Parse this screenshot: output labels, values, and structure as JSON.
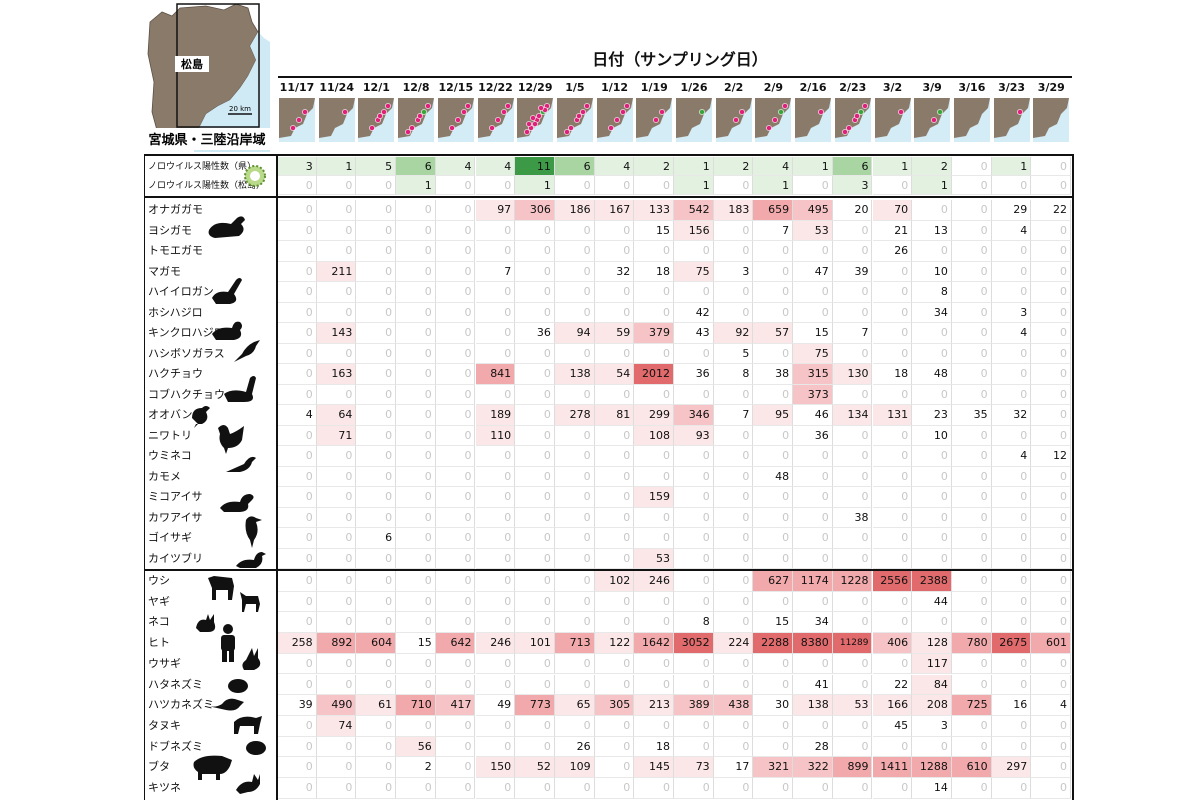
{
  "chart_data": {
    "type": "heatmap",
    "title": "日付（サンプリング日）",
    "map_labels": {
      "region": "宮城県・三陸沿岸域",
      "place": "松島",
      "scale": "20 km"
    },
    "dates": [
      "11/17",
      "11/24",
      "12/1",
      "12/8",
      "12/15",
      "12/22",
      "12/29",
      "1/5",
      "1/12",
      "1/19",
      "1/26",
      "2/2",
      "2/9",
      "2/16",
      "2/23",
      "3/2",
      "3/9",
      "3/16",
      "3/23",
      "3/29"
    ],
    "norovirus_rows": [
      {
        "label": "ノロウイルス陽性数（県）",
        "values": [
          3,
          1,
          5,
          6,
          4,
          4,
          11,
          6,
          4,
          2,
          1,
          2,
          4,
          1,
          6,
          1,
          2,
          0,
          1,
          0
        ]
      },
      {
        "label": "ノロウイルス陽性数（松島）",
        "values": [
          0,
          0,
          0,
          1,
          0,
          0,
          1,
          0,
          0,
          0,
          1,
          0,
          1,
          0,
          3,
          0,
          1,
          0,
          0,
          0
        ]
      }
    ],
    "bird_rows": [
      {
        "label": "オナガガモ",
        "values": [
          0,
          0,
          0,
          0,
          0,
          97,
          306,
          186,
          167,
          133,
          542,
          183,
          659,
          495,
          20,
          70,
          0,
          0,
          29,
          22
        ]
      },
      {
        "label": "ヨシガモ",
        "values": [
          0,
          0,
          0,
          0,
          0,
          0,
          0,
          0,
          0,
          15,
          156,
          0,
          7,
          53,
          0,
          21,
          13,
          0,
          4,
          0
        ]
      },
      {
        "label": "トモエガモ",
        "values": [
          0,
          0,
          0,
          0,
          0,
          0,
          0,
          0,
          0,
          0,
          0,
          0,
          0,
          0,
          0,
          26,
          0,
          0,
          0,
          0
        ]
      },
      {
        "label": "マガモ",
        "values": [
          0,
          211,
          0,
          0,
          0,
          7,
          0,
          0,
          32,
          18,
          75,
          3,
          0,
          47,
          39,
          0,
          10,
          0,
          0,
          0
        ]
      },
      {
        "label": "ハイイロガン",
        "values": [
          0,
          0,
          0,
          0,
          0,
          0,
          0,
          0,
          0,
          0,
          0,
          0,
          0,
          0,
          0,
          0,
          8,
          0,
          0,
          0
        ]
      },
      {
        "label": "ホシハジロ",
        "values": [
          0,
          0,
          0,
          0,
          0,
          0,
          0,
          0,
          0,
          0,
          42,
          0,
          0,
          0,
          0,
          0,
          34,
          0,
          3,
          0
        ]
      },
      {
        "label": "キンクロハジロ",
        "values": [
          0,
          143,
          0,
          0,
          0,
          0,
          36,
          94,
          59,
          379,
          43,
          92,
          57,
          15,
          7,
          0,
          0,
          0,
          4,
          0
        ]
      },
      {
        "label": "ハシボソガラス",
        "values": [
          0,
          0,
          0,
          0,
          0,
          0,
          0,
          0,
          0,
          0,
          0,
          5,
          0,
          75,
          0,
          0,
          0,
          0,
          0,
          0
        ]
      },
      {
        "label": "ハクチョウ",
        "values": [
          0,
          163,
          0,
          0,
          0,
          841,
          0,
          138,
          54,
          2012,
          36,
          8,
          38,
          315,
          130,
          18,
          48,
          0,
          0,
          0
        ]
      },
      {
        "label": "コブハクチョウ",
        "values": [
          0,
          0,
          0,
          0,
          0,
          0,
          0,
          0,
          0,
          0,
          0,
          0,
          0,
          373,
          0,
          0,
          0,
          0,
          0,
          0
        ]
      },
      {
        "label": "オオバン",
        "values": [
          4,
          64,
          0,
          0,
          0,
          189,
          0,
          278,
          81,
          299,
          346,
          7,
          95,
          46,
          134,
          131,
          23,
          35,
          32,
          0
        ]
      },
      {
        "label": "ニワトリ",
        "values": [
          0,
          71,
          0,
          0,
          0,
          110,
          0,
          0,
          0,
          108,
          93,
          0,
          0,
          36,
          0,
          0,
          10,
          0,
          0,
          0
        ]
      },
      {
        "label": "ウミネコ",
        "values": [
          0,
          0,
          0,
          0,
          0,
          0,
          0,
          0,
          0,
          0,
          0,
          0,
          0,
          0,
          0,
          0,
          0,
          0,
          4,
          12
        ]
      },
      {
        "label": "カモメ",
        "values": [
          0,
          0,
          0,
          0,
          0,
          0,
          0,
          0,
          0,
          0,
          0,
          0,
          48,
          0,
          0,
          0,
          0,
          0,
          0,
          0
        ]
      },
      {
        "label": "ミコアイサ",
        "values": [
          0,
          0,
          0,
          0,
          0,
          0,
          0,
          0,
          0,
          159,
          0,
          0,
          0,
          0,
          0,
          0,
          0,
          0,
          0,
          0
        ]
      },
      {
        "label": "カワアイサ",
        "values": [
          0,
          0,
          0,
          0,
          0,
          0,
          0,
          0,
          0,
          0,
          0,
          0,
          0,
          0,
          38,
          0,
          0,
          0,
          0,
          0
        ]
      },
      {
        "label": "ゴイサギ",
        "values": [
          0,
          0,
          6,
          0,
          0,
          0,
          0,
          0,
          0,
          0,
          0,
          0,
          0,
          0,
          0,
          0,
          0,
          0,
          0,
          0
        ]
      },
      {
        "label": "カイツブリ",
        "values": [
          0,
          0,
          0,
          0,
          0,
          0,
          0,
          0,
          0,
          53,
          0,
          0,
          0,
          0,
          0,
          0,
          0,
          0,
          0,
          0
        ]
      }
    ],
    "mammal_rows": [
      {
        "label": "ウシ",
        "values": [
          0,
          0,
          0,
          0,
          0,
          0,
          0,
          0,
          102,
          246,
          0,
          0,
          627,
          1174,
          1228,
          2556,
          2388,
          0,
          0,
          0
        ]
      },
      {
        "label": "ヤギ",
        "values": [
          0,
          0,
          0,
          0,
          0,
          0,
          0,
          0,
          0,
          0,
          0,
          0,
          0,
          0,
          0,
          0,
          44,
          0,
          0,
          0
        ]
      },
      {
        "label": "ネコ",
        "values": [
          0,
          0,
          0,
          0,
          0,
          0,
          0,
          0,
          0,
          0,
          8,
          0,
          15,
          34,
          0,
          0,
          0,
          0,
          0,
          0
        ]
      },
      {
        "label": "ヒト",
        "values": [
          258,
          892,
          604,
          15,
          642,
          246,
          101,
          713,
          122,
          1642,
          3052,
          224,
          2288,
          8380,
          11289,
          406,
          128,
          780,
          2675,
          601
        ]
      },
      {
        "label": "ウサギ",
        "values": [
          0,
          0,
          0,
          0,
          0,
          0,
          0,
          0,
          0,
          0,
          0,
          0,
          0,
          0,
          0,
          0,
          117,
          0,
          0,
          0
        ]
      },
      {
        "label": "ハタネズミ",
        "values": [
          0,
          0,
          0,
          0,
          0,
          0,
          0,
          0,
          0,
          0,
          0,
          0,
          0,
          41,
          0,
          22,
          84,
          0,
          0,
          0
        ]
      },
      {
        "label": "ハツカネズミ",
        "values": [
          39,
          490,
          61,
          710,
          417,
          49,
          773,
          65,
          305,
          213,
          389,
          438,
          30,
          138,
          53,
          166,
          208,
          725,
          16,
          4
        ]
      },
      {
        "label": "タヌキ",
        "values": [
          0,
          74,
          0,
          0,
          0,
          0,
          0,
          0,
          0,
          0,
          0,
          0,
          0,
          0,
          0,
          45,
          3,
          0,
          0,
          0
        ]
      },
      {
        "label": "ドブネズミ",
        "values": [
          0,
          0,
          0,
          56,
          0,
          0,
          0,
          26,
          0,
          18,
          0,
          0,
          0,
          28,
          0,
          0,
          0,
          0,
          0,
          0
        ]
      },
      {
        "label": "ブタ",
        "values": [
          0,
          0,
          0,
          2,
          0,
          150,
          52,
          109,
          0,
          145,
          73,
          17,
          321,
          322,
          899,
          1411,
          1288,
          610,
          297,
          0
        ]
      },
      {
        "label": "キツネ",
        "values": [
          0,
          0,
          0,
          0,
          0,
          0,
          0,
          0,
          0,
          0,
          0,
          0,
          0,
          0,
          0,
          0,
          14,
          0,
          0,
          0
        ]
      }
    ],
    "colors": {
      "green_light": "#e3f1e1",
      "green_mid": "#a8d5a2",
      "green_dark": "#3c9a47",
      "red_light": "#fbe7e8",
      "red_mid": "#f2a9ab",
      "red_dark": "#e06a6c",
      "zero_text": "#c8c8c8",
      "dot": "#e0207a",
      "dot_green": "#3aa63a"
    }
  }
}
